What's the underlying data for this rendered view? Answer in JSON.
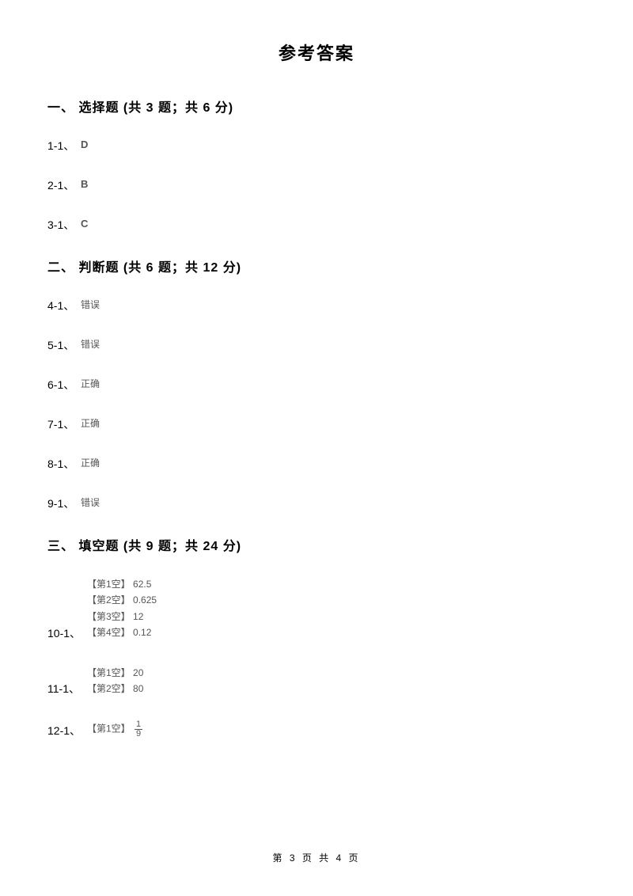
{
  "title": "参考答案",
  "section1": {
    "header": "一、 选择题 (共 3 题；共 6 分)",
    "items": [
      {
        "label": "1-1、",
        "answer": "D"
      },
      {
        "label": "2-1、",
        "answer": "B"
      },
      {
        "label": "3-1、",
        "answer": "C"
      }
    ]
  },
  "section2": {
    "header": "二、 判断题 (共 6 题；共 12 分)",
    "items": [
      {
        "label": "4-1、",
        "answer": "错误"
      },
      {
        "label": "5-1、",
        "answer": "错误"
      },
      {
        "label": "6-1、",
        "answer": "正确"
      },
      {
        "label": "7-1、",
        "answer": "正确"
      },
      {
        "label": "8-1、",
        "answer": "正确"
      },
      {
        "label": "9-1、",
        "answer": "错误"
      }
    ]
  },
  "section3": {
    "header": "三、 填空题 (共 9 题；共 24 分)",
    "items": [
      {
        "label": "10-1、",
        "blanks": [
          {
            "slot": "【第1空】",
            "value": "62.5"
          },
          {
            "slot": "【第2空】",
            "value": "0.625"
          },
          {
            "slot": "【第3空】",
            "value": "12"
          },
          {
            "slot": "【第4空】",
            "value": "0.12"
          }
        ]
      },
      {
        "label": "11-1、",
        "blanks": [
          {
            "slot": "【第1空】",
            "value": "20"
          },
          {
            "slot": "【第2空】",
            "value": "80"
          }
        ]
      },
      {
        "label": "12-1、",
        "blanks": [
          {
            "slot": "【第1空】",
            "value": "1/9",
            "fraction": {
              "num": "1",
              "den": "9"
            }
          }
        ]
      }
    ]
  },
  "footer": "第 3 页 共 4 页"
}
